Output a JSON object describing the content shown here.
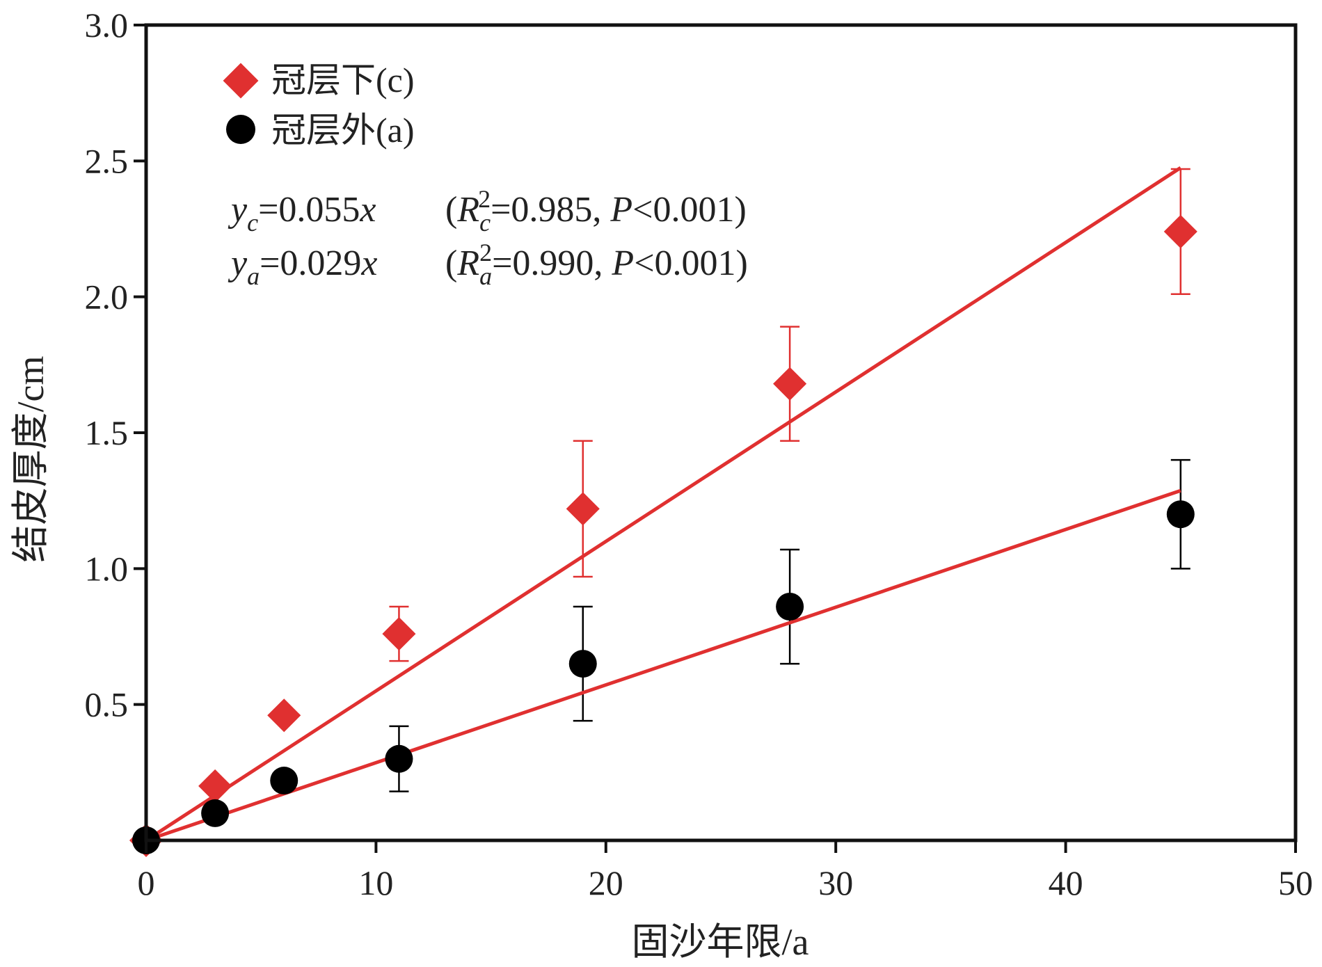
{
  "chart_data": {
    "type": "scatter",
    "title": "",
    "xlabel": "固沙年限/a",
    "ylabel": "结皮厚度/cm",
    "xlim": [
      0,
      50
    ],
    "ylim": [
      0,
      3.0
    ],
    "x_ticks": [
      0,
      10,
      20,
      30,
      40,
      50
    ],
    "x_tick_labels": [
      "0",
      "10",
      "20",
      "30",
      "40",
      "50"
    ],
    "y_ticks": [
      0.5,
      1.0,
      1.5,
      2.0,
      2.5,
      3.0
    ],
    "y_tick_labels": [
      "0.5",
      "1.0",
      "1.5",
      "2.0",
      "2.5",
      "3.0"
    ],
    "grid": false,
    "legend_position": "top-left",
    "series": [
      {
        "name": "冠层下(c)",
        "marker": "diamond",
        "color": "#e03030",
        "errorbar_color": "#e03030",
        "x": [
          0,
          3,
          6,
          11,
          19,
          28,
          45
        ],
        "y": [
          0.0,
          0.2,
          0.46,
          0.76,
          1.22,
          1.68,
          2.24
        ],
        "error": [
          0,
          0,
          0,
          0.1,
          0.25,
          0.21,
          0.23
        ],
        "fit": {
          "slope": 0.055,
          "x_range": [
            0,
            45
          ]
        }
      },
      {
        "name": "冠层外(a)",
        "marker": "circle",
        "color": "#000000",
        "errorbar_color": "#000000",
        "x": [
          0,
          3,
          6,
          11,
          19,
          28,
          45
        ],
        "y": [
          0.0,
          0.1,
          0.22,
          0.3,
          0.65,
          0.86,
          1.2
        ],
        "error": [
          0,
          0,
          0,
          0.12,
          0.21,
          0.21,
          0.2
        ],
        "fit": {
          "slope": 0.0286,
          "x_range": [
            0,
            45
          ]
        }
      }
    ],
    "fit_color": "#e03030",
    "equations": [
      {
        "y": "y",
        "sub": "c",
        "rhs": "=0.055",
        "var": "x",
        "open": "(",
        "R": "R",
        "rsub": "c",
        "sup": "2",
        "rval": "=0.985, ",
        "P": "P",
        "pval": "<0.001)"
      },
      {
        "y": "y",
        "sub": "a",
        "rhs": "=0.029",
        "var": "x",
        "open": "(",
        "R": "R",
        "rsub": "a",
        "sup": "2",
        "rval": "=0.990, ",
        "P": "P",
        "pval": "<0.001)"
      }
    ]
  }
}
